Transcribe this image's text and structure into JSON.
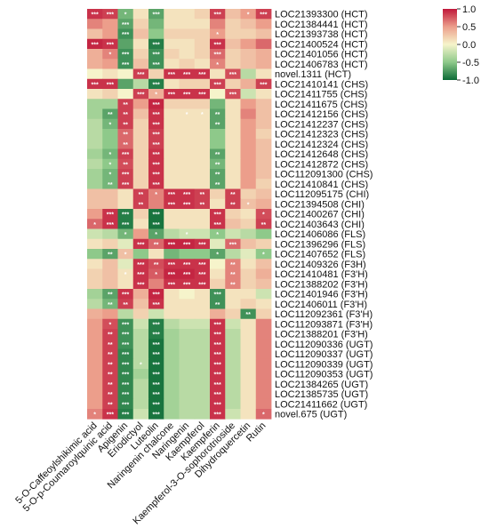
{
  "chart_data": {
    "type": "heatmap",
    "title": "",
    "xlabel": "",
    "ylabel": "",
    "columns": [
      "5-O-Caffeoylshikimic acid",
      "5-O-p-Coumaroylquinic acid",
      "Apigenin",
      "Eriodictyol",
      "Luteolin",
      "Naringenin chalcone",
      "Naringenin",
      "Kaempferol",
      "Kaempferin",
      "Kaempferol-3-O-sophorotrioside",
      "Dihydroquercetin",
      "Rutin"
    ],
    "rows": [
      "LOC21393300 (HCT)",
      "LOC21384441 (HCT)",
      "LOC21393738 (HCT)",
      "LOC21400524 (HCT)",
      "LOC21401056 (HCT)",
      "LOC21406783 (HCT)",
      "novel.1311 (HCT)",
      "LOC21410141 (CHS)",
      "LOC21411755 (CHS)",
      "LOC21411675 (CHS)",
      "LOC21412156 (CHS)",
      "LOC21412237 (CHS)",
      "LOC21412323 (CHS)",
      "LOC21412324 (CHS)",
      "LOC21412648 (CHS)",
      "LOC21412872 (CHS)",
      "LOC112091300 (CHS)",
      "LOC21410841 (CHS)",
      "LOC112095175 (CHI)",
      "LOC21394508 (CHI)",
      "LOC21400267 (CHI)",
      "LOC21403643 (CHI)",
      "LOC21406086 (FLS)",
      "LOC21396296 (FLS)",
      "LOC21407652 (FLS)",
      "LOC21409326 (F3H)",
      "LOC21410481 (F3'H)",
      "LOC21388202 (F3'H)",
      "LOC21401946 (F3'H)",
      "LOC21406011 (F3'H)",
      "LOC112092361 (F3'H)",
      "LOC112093871 (F3'H)",
      "LOC21388201 (F3'H)",
      "LOC112090336 (UGT)",
      "LOC112090337 (UGT)",
      "LOC112090339 (UGT)",
      "LOC112090353 (UGT)",
      "LOC21384265 (UGT)",
      "LOC21385735 (UGT)",
      "LOC21411662 (UGT)",
      "novel.675 (UGT)"
    ],
    "values": [
      [
        0.9,
        0.85,
        -0.6,
        0.1,
        -0.7,
        0.1,
        0.1,
        0.2,
        0.85,
        0.3,
        0.5,
        0.85
      ],
      [
        0.6,
        0.5,
        -0.7,
        0.2,
        -0.6,
        0.1,
        0.1,
        0.1,
        0.6,
        0.2,
        0.3,
        0.5
      ],
      [
        0.3,
        0.5,
        -0.8,
        0.3,
        -0.5,
        0.2,
        0.2,
        0.2,
        0.5,
        0.2,
        0.2,
        0.3
      ],
      [
        0.95,
        0.9,
        -0.7,
        0.1,
        -0.9,
        0.1,
        0.1,
        0.2,
        0.9,
        0.3,
        0.5,
        0.7
      ],
      [
        0.4,
        0.6,
        -0.8,
        0.2,
        -0.8,
        0.2,
        0.1,
        0.2,
        0.7,
        0.2,
        0.3,
        0.4
      ],
      [
        0.4,
        0.5,
        -0.8,
        0.3,
        -0.8,
        0.1,
        0.2,
        0.1,
        0.6,
        0.2,
        0.3,
        0.4
      ],
      [
        0.0,
        0.1,
        0.0,
        0.85,
        0.2,
        0.9,
        0.9,
        0.9,
        0.1,
        0.8,
        -0.3,
        0.1
      ],
      [
        0.9,
        0.9,
        -0.7,
        -0.3,
        -0.9,
        0.1,
        0.2,
        0.2,
        0.85,
        0.2,
        0.4,
        0.85
      ],
      [
        0.1,
        0.2,
        0.0,
        0.85,
        0.4,
        0.9,
        0.9,
        0.9,
        0.0,
        0.8,
        -0.2,
        0.1
      ],
      [
        -0.4,
        -0.4,
        0.85,
        0.5,
        0.95,
        0.2,
        0.2,
        0.2,
        -0.6,
        0.1,
        0.5,
        0.3
      ],
      [
        -0.4,
        -0.7,
        0.85,
        0.3,
        0.9,
        0.1,
        0.1,
        0.1,
        -0.7,
        0.1,
        0.6,
        0.3
      ],
      [
        -0.3,
        -0.6,
        0.85,
        0.2,
        0.9,
        0.1,
        0.1,
        0.1,
        -0.7,
        0.1,
        0.5,
        0.3
      ],
      [
        -0.3,
        -0.5,
        0.7,
        0.2,
        0.85,
        0.1,
        0.1,
        0.1,
        -0.5,
        0.1,
        0.5,
        0.2
      ],
      [
        -0.3,
        -0.5,
        0.7,
        0.2,
        0.85,
        0.1,
        0.1,
        0.1,
        -0.5,
        0.1,
        0.5,
        0.3
      ],
      [
        -0.4,
        -0.6,
        0.85,
        0.2,
        0.9,
        0.1,
        0.1,
        0.1,
        -0.7,
        0.1,
        0.5,
        0.3
      ],
      [
        -0.3,
        -0.5,
        0.8,
        0.2,
        0.9,
        0.1,
        0.1,
        0.1,
        -0.6,
        0.1,
        0.5,
        0.3
      ],
      [
        -0.4,
        -0.6,
        0.85,
        0.2,
        0.9,
        0.1,
        0.1,
        0.1,
        -0.7,
        0.1,
        0.5,
        0.3
      ],
      [
        -0.4,
        -0.6,
        0.85,
        0.2,
        0.9,
        0.1,
        0.1,
        0.1,
        -0.7,
        0.1,
        0.5,
        0.2
      ],
      [
        0.3,
        0.3,
        0.1,
        0.85,
        0.6,
        0.9,
        0.9,
        0.85,
        0.2,
        0.85,
        0.2,
        0.3
      ],
      [
        0.3,
        0.3,
        0.1,
        0.85,
        0.6,
        0.9,
        0.9,
        0.85,
        0.1,
        0.85,
        0.3,
        0.4
      ],
      [
        0.5,
        0.9,
        -0.9,
        0.2,
        -0.95,
        0.1,
        0.1,
        0.1,
        0.9,
        0.2,
        0.1,
        0.8
      ],
      [
        0.7,
        0.9,
        -0.9,
        0.1,
        -0.95,
        0.1,
        0.1,
        0.1,
        0.9,
        0.3,
        0.2,
        0.85
      ],
      [
        -0.2,
        -0.3,
        -0.6,
        0.5,
        -0.7,
        -0.3,
        -0.2,
        -0.2,
        -0.5,
        -0.2,
        -0.3,
        -0.5
      ],
      [
        0.1,
        0.2,
        -0.1,
        0.9,
        0.7,
        0.95,
        0.95,
        0.9,
        -0.1,
        0.7,
        0.3,
        0.2
      ],
      [
        -0.5,
        -0.7,
        0.3,
        -0.5,
        0.1,
        -0.6,
        -0.5,
        -0.5,
        -0.7,
        -0.3,
        -0.1,
        -0.5
      ],
      [
        0.1,
        0.3,
        -0.1,
        0.9,
        0.8,
        0.9,
        0.9,
        0.9,
        0.0,
        0.6,
        0.1,
        0.3
      ],
      [
        0.2,
        0.3,
        0.1,
        0.9,
        0.75,
        0.95,
        0.95,
        0.9,
        0.1,
        0.6,
        0.2,
        0.4
      ],
      [
        0.2,
        0.3,
        0.1,
        0.9,
        0.6,
        0.9,
        0.9,
        0.9,
        0.2,
        0.6,
        0.2,
        0.3
      ],
      [
        -0.4,
        -0.7,
        0.9,
        0.4,
        0.95,
        0.1,
        0.0,
        0.1,
        -0.8,
        0.1,
        0.1,
        -0.2
      ],
      [
        -0.3,
        -0.6,
        0.85,
        0.3,
        0.9,
        0.1,
        0.1,
        0.1,
        -0.8,
        0.1,
        0.2,
        0.1
      ],
      [
        0.4,
        0.5,
        -0.3,
        0.2,
        -0.2,
        0.1,
        0.1,
        0.1,
        0.4,
        0.2,
        -0.8,
        0.2
      ],
      [
        0.5,
        0.8,
        -0.8,
        -0.2,
        -0.9,
        -0.3,
        -0.2,
        -0.2,
        0.9,
        -0.2,
        0.1,
        0.6
      ],
      [
        0.5,
        0.85,
        -0.8,
        -0.3,
        -0.9,
        -0.4,
        -0.3,
        -0.3,
        0.9,
        -0.3,
        0.1,
        0.6
      ],
      [
        0.5,
        0.85,
        -0.8,
        -0.3,
        -0.95,
        -0.4,
        -0.3,
        -0.3,
        0.9,
        -0.3,
        0.1,
        0.6
      ],
      [
        0.5,
        0.85,
        -0.85,
        -0.3,
        -0.95,
        -0.4,
        -0.3,
        -0.3,
        0.9,
        -0.3,
        0.1,
        0.6
      ],
      [
        0.5,
        0.85,
        -0.85,
        -0.3,
        -0.95,
        -0.4,
        -0.3,
        -0.3,
        0.9,
        -0.3,
        0.1,
        0.6
      ],
      [
        0.5,
        0.85,
        -0.85,
        -0.4,
        -0.95,
        -0.4,
        -0.3,
        -0.3,
        0.9,
        -0.3,
        0.1,
        0.6
      ],
      [
        0.5,
        0.85,
        -0.85,
        -0.3,
        -0.95,
        -0.4,
        -0.3,
        -0.3,
        0.9,
        -0.3,
        0.1,
        0.6
      ],
      [
        0.5,
        0.85,
        -0.85,
        -0.3,
        -0.95,
        -0.4,
        -0.3,
        -0.3,
        0.9,
        -0.3,
        0.1,
        0.6
      ],
      [
        0.5,
        0.85,
        -0.85,
        -0.3,
        -0.95,
        -0.4,
        -0.3,
        -0.3,
        0.9,
        -0.3,
        0.1,
        0.6
      ],
      [
        0.6,
        0.9,
        -0.9,
        -0.2,
        -0.95,
        -0.4,
        -0.3,
        -0.3,
        0.9,
        -0.2,
        0.1,
        0.7
      ]
    ],
    "significance": [
      [
        "***",
        "***",
        "*",
        "",
        "***",
        "",
        "",
        "",
        "***",
        "",
        "*",
        "***"
      ],
      [
        "",
        "",
        "***",
        "",
        "",
        "",
        "",
        "",
        "",
        "",
        "",
        ""
      ],
      [
        "",
        "",
        "***",
        "",
        "",
        "",
        "",
        "",
        "*",
        "",
        "",
        ""
      ],
      [
        "***",
        "***",
        "",
        "",
        "***",
        "",
        "",
        "",
        "***",
        "",
        "",
        ""
      ],
      [
        "",
        "*",
        "***",
        "",
        "***",
        "",
        "",
        "",
        "***",
        "",
        "",
        ""
      ],
      [
        "",
        "",
        "***",
        "",
        "***",
        "",
        "",
        "",
        "*",
        "",
        "",
        ""
      ],
      [
        "",
        "",
        "",
        "***",
        "",
        "***",
        "***",
        "***",
        "",
        "***",
        "",
        ""
      ],
      [
        "***",
        "***",
        "",
        "",
        "***",
        "",
        "",
        "",
        "***",
        "",
        "",
        "***"
      ],
      [
        "",
        "",
        "",
        "***",
        "*",
        "***",
        "***",
        "***",
        "",
        "***",
        "",
        ""
      ],
      [
        "",
        "",
        "**",
        "",
        "***",
        "",
        "",
        "",
        "",
        "",
        "",
        ""
      ],
      [
        "",
        "**",
        "**",
        "",
        "***",
        "",
        "*",
        "*",
        "**",
        "",
        "",
        ""
      ],
      [
        "",
        "*",
        "**",
        "",
        "***",
        "",
        "",
        "",
        "**",
        "",
        "",
        ""
      ],
      [
        "",
        "",
        "**",
        "",
        "***",
        "",
        "",
        "",
        "",
        "",
        "",
        ""
      ],
      [
        "",
        "",
        "**",
        "",
        "***",
        "",
        "",
        "",
        "",
        "",
        "",
        ""
      ],
      [
        "",
        "*",
        "***",
        "",
        "***",
        "",
        "",
        "",
        "**",
        "",
        "",
        ""
      ],
      [
        "",
        "*",
        "**",
        "",
        "***",
        "",
        "",
        "",
        "**",
        "",
        "",
        ""
      ],
      [
        "",
        "*",
        "***",
        "",
        "***",
        "",
        "",
        "",
        "**",
        "",
        "",
        ""
      ],
      [
        "",
        "**",
        "***",
        "",
        "***",
        "",
        "",
        "",
        "**",
        "",
        "",
        ""
      ],
      [
        "",
        "",
        "",
        "**",
        "*",
        "***",
        "***",
        "**",
        "",
        "**",
        "",
        ""
      ],
      [
        "",
        "",
        "",
        "**",
        "",
        "***",
        "***",
        "**",
        "",
        "**",
        "*",
        ""
      ],
      [
        "",
        "***",
        "***",
        "",
        "***",
        "",
        "",
        "",
        "***",
        "",
        "",
        "*"
      ],
      [
        "*",
        "***",
        "***",
        "",
        "***",
        "",
        "",
        "",
        "***",
        "",
        "",
        "**"
      ],
      [
        "",
        "",
        "*",
        "",
        "*",
        "",
        "*",
        "",
        "*",
        "",
        "",
        ""
      ],
      [
        "",
        "",
        "",
        "***",
        "**",
        "***",
        "***",
        "***",
        "",
        "***",
        "",
        ""
      ],
      [
        "",
        "**",
        "*",
        "",
        "",
        "",
        "",
        "",
        "*",
        "",
        "",
        "*"
      ],
      [
        "",
        "",
        "",
        "***",
        "**",
        "***",
        "***",
        "***",
        "",
        "**",
        "",
        ""
      ],
      [
        "",
        "",
        "*",
        "***",
        "*",
        "***",
        "***",
        "***",
        "",
        "**",
        "",
        ""
      ],
      [
        "",
        "",
        "",
        "***",
        "",
        "***",
        "***",
        "***",
        "",
        "**",
        "",
        ""
      ],
      [
        "",
        "**",
        "***",
        "",
        "***",
        "",
        "",
        "",
        "***",
        "",
        "",
        ""
      ],
      [
        "",
        "**",
        "**",
        "",
        "***",
        "",
        "",
        "",
        "**",
        "",
        "",
        ""
      ],
      [
        "",
        "",
        "",
        "",
        "",
        "",
        "",
        "",
        "",
        "",
        "**",
        ""
      ],
      [
        "",
        "*",
        "***",
        "",
        "***",
        "",
        "",
        "",
        "***",
        "",
        "",
        ""
      ],
      [
        "",
        "**",
        "***",
        "",
        "***",
        "",
        "",
        "",
        "***",
        "",
        "",
        ""
      ],
      [
        "",
        "**",
        "***",
        "",
        "***",
        "",
        "",
        "",
        "***",
        "",
        "",
        ""
      ],
      [
        "",
        "**",
        "***",
        "",
        "***",
        "",
        "",
        "",
        "***",
        "",
        "",
        ""
      ],
      [
        "",
        "**",
        "***",
        "*",
        "***",
        "",
        "",
        "",
        "***",
        "",
        "",
        ""
      ],
      [
        "",
        "**",
        "***",
        "",
        "***",
        "",
        "",
        "",
        "***",
        "",
        "",
        ""
      ],
      [
        "",
        "**",
        "***",
        "",
        "***",
        "",
        "",
        "",
        "***",
        "",
        "",
        ""
      ],
      [
        "",
        "**",
        "***",
        "",
        "***",
        "",
        "",
        "",
        "***",
        "",
        "",
        ""
      ],
      [
        "",
        "**",
        "***",
        "",
        "***",
        "",
        "",
        "",
        "***",
        "",
        "",
        ""
      ],
      [
        "*",
        "***",
        "***",
        "",
        "***",
        "",
        "",
        "",
        "***",
        "",
        "",
        "*"
      ]
    ],
    "legend": {
      "type": "colorbar",
      "placement": "top-right",
      "range": [
        -1,
        1
      ],
      "ticks": [
        "1.0",
        "0.5",
        "0.0",
        "-0.5",
        "-1.0"
      ],
      "tick_values": [
        1,
        0.5,
        0,
        -0.5,
        -1
      ]
    },
    "colors": {
      "positive": "#c0173a",
      "mid_pos": "#ec9e8b",
      "neutral": "#f6f4cb",
      "mid_neg": "#8ec98a",
      "negative": "#0b6b36"
    },
    "grid": false
  }
}
